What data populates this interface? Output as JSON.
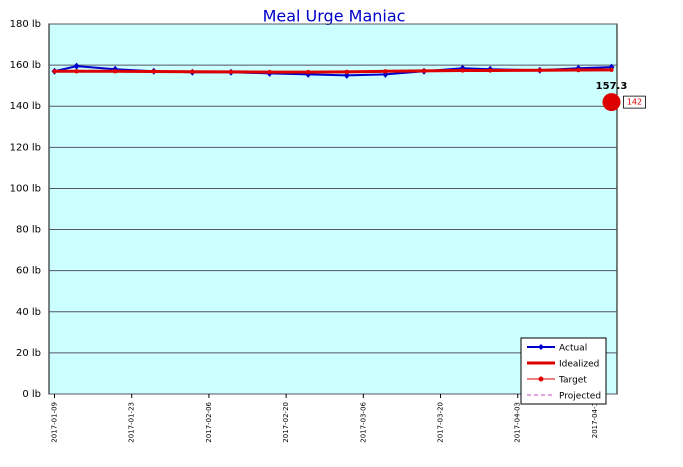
{
  "chart_data": {
    "type": "line",
    "title": "Meal Urge Maniac",
    "xlim": [
      "2017-01-08",
      "2017-04-21"
    ],
    "xticks": [
      "2017-01-09",
      "2017-01-23",
      "2017-02-06",
      "2017-02-20",
      "2017-03-06",
      "2017-03-20",
      "2017-04-03",
      {
        "value": "2017-04-17",
        "label": "2017-04-1"
      }
    ],
    "ylim": [
      0,
      180
    ],
    "yticks": [
      {
        "value": 0,
        "label": "0 lb"
      },
      {
        "value": 20,
        "label": "20 lb"
      },
      {
        "value": 40,
        "label": "40 lb"
      },
      {
        "value": 60,
        "label": "60 lb"
      },
      {
        "value": 80,
        "label": "80 lb"
      },
      {
        "value": 100,
        "label": "100 lb"
      },
      {
        "value": 120,
        "label": "120 lb"
      },
      {
        "value": 140,
        "label": "140 lb"
      },
      {
        "value": 160,
        "label": "160 lb"
      },
      {
        "value": 180,
        "label": "180 lb"
      }
    ],
    "grid": true,
    "legend": "lower right",
    "series": [
      {
        "name": "Actual",
        "color": "#0000cc",
        "x": [
          "2017-01-09",
          "2017-01-13",
          "2017-01-20",
          "2017-01-27",
          "2017-02-03",
          "2017-02-10",
          "2017-02-17",
          "2017-02-24",
          "2017-03-03",
          "2017-03-10",
          "2017-03-17",
          "2017-03-24",
          "2017-03-29",
          "2017-04-07",
          "2017-04-14",
          "2017-04-20"
        ],
        "values": [
          157,
          159.5,
          158,
          157,
          156.5,
          156.5,
          156,
          155.5,
          155,
          155.5,
          157,
          158.5,
          158,
          157.5,
          158.5,
          159
        ]
      },
      {
        "name": "Idealized",
        "color": "#dd0000",
        "x": [
          "2017-01-09",
          "2017-01-13",
          "2017-01-20",
          "2017-01-27",
          "2017-02-03",
          "2017-02-10",
          "2017-02-17",
          "2017-02-24",
          "2017-03-03",
          "2017-03-10",
          "2017-03-17",
          "2017-03-24",
          "2017-03-29",
          "2017-04-07",
          "2017-04-14",
          "2017-04-20"
        ],
        "values": [
          157,
          157,
          157,
          156.9,
          156.8,
          156.7,
          156.6,
          156.6,
          156.7,
          157,
          157.2,
          157.4,
          157.4,
          157.5,
          157.6,
          157.7
        ]
      },
      {
        "name": "Target",
        "color": "#dd0000",
        "x": [
          "2017-04-20"
        ],
        "values": [
          142
        ],
        "value_labels": [
          "142"
        ]
      },
      {
        "name": "Projected",
        "color": "#cc44cc",
        "x": [],
        "values": []
      }
    ],
    "annotation": "157.3"
  }
}
